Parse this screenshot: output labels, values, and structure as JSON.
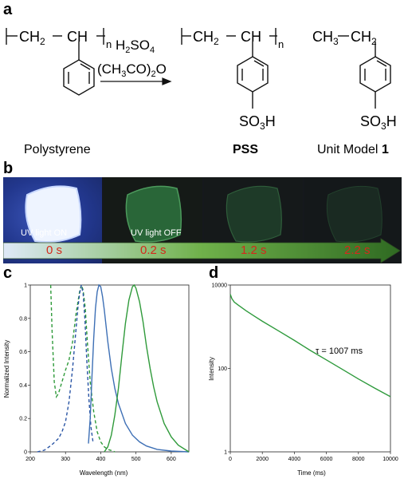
{
  "panel_a": {
    "letter": "a",
    "reagent_1": "H₂SO₄",
    "reagent_2": "(CH₃CO)₂O",
    "chain_repeat": "CH₂ CH",
    "subscript_n": "n",
    "sulfonate": "SO₃H",
    "ethyl": "CH₃–CH₂",
    "label_polystyrene": "Polystyrene",
    "label_pss": "PSS",
    "label_model_prefix": "Unit Model",
    "label_model_number": "1"
  },
  "panel_b": {
    "letter": "b",
    "caption_on": "UV light ON",
    "caption_off": "UV light OFF",
    "times": [
      "0 s",
      "0.2 s",
      "1.2 s",
      "2.2 s"
    ]
  },
  "panel_c": {
    "letter": "c",
    "chart_data": {
      "type": "line",
      "xlabel": "Wavelength (nm)",
      "ylabel": "Normalized Intensity",
      "xlim": [
        200,
        650
      ],
      "ylim": [
        0,
        1
      ],
      "xticks": [
        200,
        300,
        400,
        500,
        600
      ],
      "yticks": [
        0,
        0.2,
        0.4,
        0.6,
        0.8,
        1
      ],
      "series": [
        {
          "style": "dashed",
          "color": "#2f9a3a",
          "x": [
            258,
            262,
            268,
            274,
            280,
            290,
            300,
            310,
            320,
            330,
            340,
            345,
            350,
            356,
            362,
            370,
            380,
            390,
            400,
            410,
            420,
            430,
            440
          ],
          "y": [
            1.0,
            0.72,
            0.42,
            0.33,
            0.35,
            0.42,
            0.49,
            0.55,
            0.66,
            0.83,
            0.96,
            1.0,
            0.97,
            0.86,
            0.66,
            0.42,
            0.24,
            0.12,
            0.06,
            0.03,
            0.015,
            0.008,
            0.0
          ]
        },
        {
          "style": "dashed",
          "color": "#2a55a5",
          "x": [
            220,
            240,
            260,
            270,
            280,
            290,
            300,
            310,
            320,
            325,
            330,
            335,
            340,
            345,
            350,
            355,
            360,
            366,
            372,
            378
          ],
          "y": [
            0.0,
            0.01,
            0.04,
            0.06,
            0.08,
            0.12,
            0.18,
            0.3,
            0.5,
            0.62,
            0.74,
            0.86,
            0.95,
            1.0,
            0.95,
            0.8,
            0.56,
            0.33,
            0.15,
            0.06
          ]
        },
        {
          "style": "solid",
          "color": "#3d6fb5",
          "x": [
            365,
            370,
            375,
            380,
            385,
            390,
            395,
            400,
            405,
            410,
            420,
            430,
            440,
            450,
            470,
            490,
            510,
            530,
            560,
            600,
            650
          ],
          "y": [
            0.05,
            0.2,
            0.45,
            0.68,
            0.86,
            0.96,
            1.0,
            0.99,
            0.93,
            0.85,
            0.66,
            0.5,
            0.38,
            0.29,
            0.17,
            0.1,
            0.06,
            0.035,
            0.015,
            0.005,
            0.0
          ]
        },
        {
          "style": "solid",
          "color": "#2f9a3a",
          "x": [
            410,
            420,
            430,
            440,
            450,
            460,
            470,
            480,
            490,
            495,
            500,
            510,
            520,
            530,
            540,
            550,
            560,
            580,
            600,
            620,
            650
          ],
          "y": [
            0.0,
            0.03,
            0.1,
            0.22,
            0.38,
            0.58,
            0.77,
            0.91,
            0.99,
            1.0,
            0.98,
            0.9,
            0.78,
            0.63,
            0.5,
            0.39,
            0.3,
            0.17,
            0.09,
            0.04,
            0.0
          ]
        }
      ]
    }
  },
  "panel_d": {
    "letter": "d",
    "annotation": "τ = 1007 ms",
    "chart_data": {
      "type": "line",
      "xlabel": "Time (ms)",
      "ylabel": "Intensity",
      "xlim": [
        0,
        10000
      ],
      "ylim": [
        1,
        10000
      ],
      "yscale": "log",
      "xticks": [
        0,
        2000,
        4000,
        6000,
        8000,
        10000
      ],
      "yticks": [
        1,
        100,
        10000
      ],
      "series": [
        {
          "style": "solid",
          "color": "#2e9a3c",
          "x": [
            0,
            100,
            250,
            500,
            1000,
            1500,
            2000,
            3000,
            4000,
            5000,
            6000,
            7000,
            8000,
            9000,
            10000
          ],
          "y": [
            6000,
            4700,
            3900,
            3300,
            2400,
            1800,
            1350,
            800,
            470,
            270,
            160,
            95,
            56,
            34,
            21
          ]
        }
      ]
    }
  }
}
